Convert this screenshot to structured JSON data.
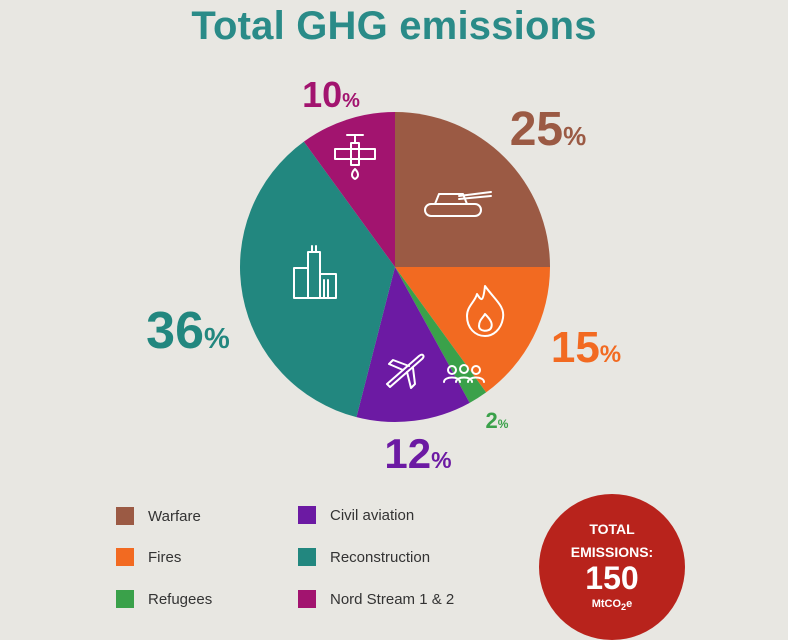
{
  "title": "Total GHG emissions",
  "chart_data": {
    "type": "pie",
    "title": "Total GHG emissions",
    "slices": [
      {
        "name": "Warfare",
        "value": 25,
        "label": "25%",
        "color": "#9b5a44",
        "icon": "tank-icon"
      },
      {
        "name": "Fires",
        "value": 15,
        "label": "15%",
        "color": "#f26a21",
        "icon": "flame-icon"
      },
      {
        "name": "Refugees",
        "value": 2,
        "label": "2%",
        "color": "#3aa14a",
        "icon": "people-icon"
      },
      {
        "name": "Civil aviation",
        "value": 12,
        "label": "12%",
        "color": "#6c1aa3",
        "icon": "airplane-icon"
      },
      {
        "name": "Reconstruction",
        "value": 36,
        "label": "36%",
        "color": "#22877f",
        "icon": "building-icon"
      },
      {
        "name": "Nord Stream 1 & 2",
        "value": 10,
        "label": "10%",
        "color": "#a2146f",
        "icon": "pipeline-icon"
      }
    ]
  },
  "legend": [
    {
      "label": "Warfare",
      "color": "#9b5a44"
    },
    {
      "label": "Fires",
      "color": "#f26a21"
    },
    {
      "label": "Refugees",
      "color": "#3aa14a"
    },
    {
      "label": "Civil aviation",
      "color": "#6c1aa3"
    },
    {
      "label": "Reconstruction",
      "color": "#22877f"
    },
    {
      "label": "Nord Stream 1 & 2",
      "color": "#a2146f"
    }
  ],
  "total": {
    "label_line1": "TOTAL",
    "label_line2": "EMISSIONS:",
    "value": "150",
    "unit_prefix": "MtCO",
    "unit_sub": "2",
    "unit_suffix": "e"
  }
}
